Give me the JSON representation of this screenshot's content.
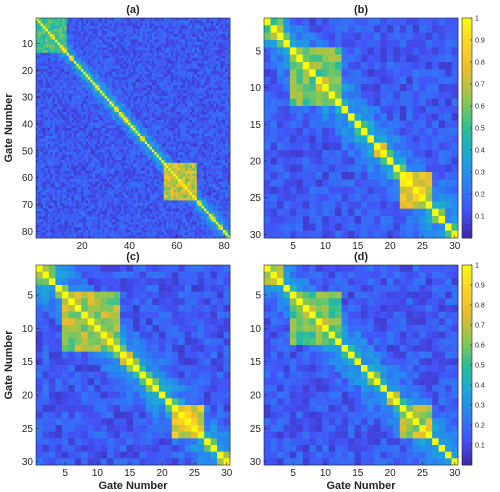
{
  "chart_data": [
    {
      "panel": "a",
      "type": "heatmap",
      "title": "(a)",
      "xlabel": "",
      "ylabel": "Gate Number",
      "n": 82,
      "xlim": [
        1,
        82
      ],
      "ylim": [
        1,
        82
      ],
      "xticks": [
        20,
        40,
        60,
        80
      ],
      "yticks": [
        10,
        20,
        30,
        40,
        50,
        60,
        70,
        80
      ],
      "blocks": [
        {
          "start": 1,
          "end": 13,
          "strength": 0.55
        },
        {
          "start": 55,
          "end": 68,
          "strength": 0.75
        }
      ],
      "diagonal": 1.0,
      "colorbar": false
    },
    {
      "panel": "b",
      "type": "heatmap",
      "title": "(b)",
      "xlabel": "",
      "ylabel": "",
      "n": 30,
      "xlim": [
        1,
        30
      ],
      "ylim": [
        1,
        30
      ],
      "xticks": [
        5,
        10,
        15,
        20,
        25,
        30
      ],
      "yticks": [
        5,
        10,
        15,
        20,
        25,
        30
      ],
      "blocks": [
        {
          "start": 1,
          "end": 3,
          "strength": 0.65
        },
        {
          "start": 5,
          "end": 12,
          "strength": 0.62
        },
        {
          "start": 22,
          "end": 26,
          "strength": 0.85
        }
      ],
      "diagonal": 1.0,
      "colorbar": true,
      "colorbar_ticks": [
        0.1,
        0.2,
        0.3,
        0.4,
        0.5,
        0.6,
        0.7,
        0.8,
        0.9,
        1
      ]
    },
    {
      "panel": "c",
      "type": "heatmap",
      "title": "(c)",
      "xlabel": "Gate Number",
      "ylabel": "Gate Number",
      "n": 30,
      "xlim": [
        1,
        30
      ],
      "ylim": [
        1,
        30
      ],
      "xticks": [
        5,
        10,
        15,
        20,
        25,
        30
      ],
      "yticks": [
        5,
        10,
        15,
        20,
        25,
        30
      ],
      "blocks": [
        {
          "start": 1,
          "end": 3,
          "strength": 0.65
        },
        {
          "start": 5,
          "end": 13,
          "strength": 0.7
        },
        {
          "start": 22,
          "end": 26,
          "strength": 0.8
        }
      ],
      "diagonal": 1.0,
      "colorbar": false
    },
    {
      "panel": "d",
      "type": "heatmap",
      "title": "(d)",
      "xlabel": "Gate Number",
      "ylabel": "",
      "n": 30,
      "xlim": [
        1,
        30
      ],
      "ylim": [
        1,
        30
      ],
      "xticks": [
        5,
        10,
        15,
        20,
        25,
        30
      ],
      "yticks": [
        5,
        10,
        15,
        20,
        25,
        30
      ],
      "blocks": [
        {
          "start": 1,
          "end": 3,
          "strength": 0.65
        },
        {
          "start": 5,
          "end": 12,
          "strength": 0.6
        },
        {
          "start": 22,
          "end": 26,
          "strength": 0.75
        }
      ],
      "diagonal": 1.0,
      "colorbar": true,
      "colorbar_ticks": [
        0.1,
        0.2,
        0.3,
        0.4,
        0.5,
        0.6,
        0.7,
        0.8,
        0.9,
        1
      ]
    }
  ],
  "colormap": "parula",
  "colormap_stops": [
    "#3e26a8",
    "#4353f7",
    "#2a82f4",
    "#1ba8d7",
    "#2bbf96",
    "#8ec752",
    "#e4bc2f",
    "#fcd126",
    "#f9fb0e"
  ]
}
